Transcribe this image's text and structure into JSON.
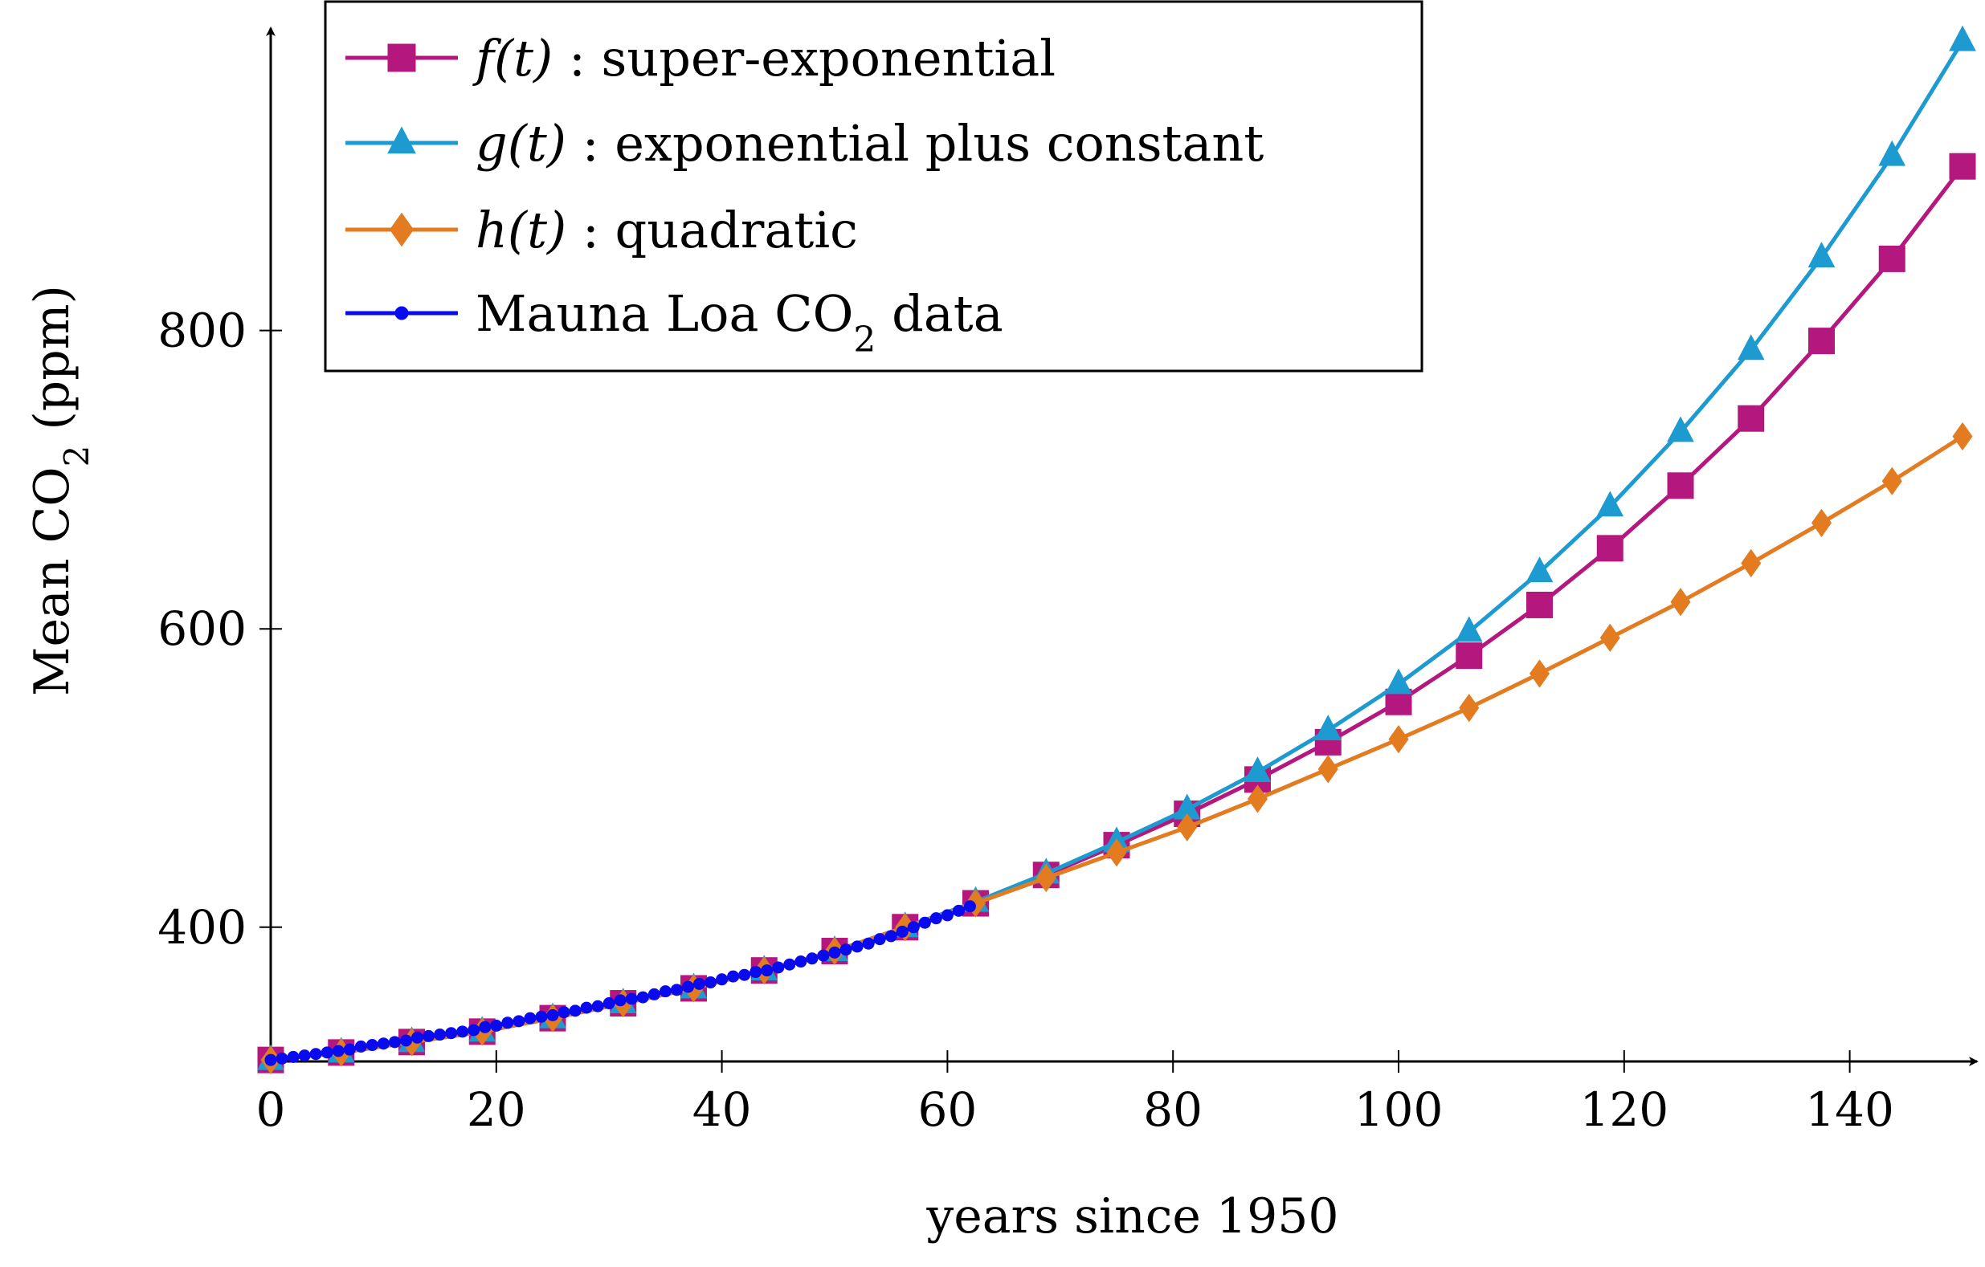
{
  "chart_data": {
    "type": "line",
    "xlabel": "years since 1950",
    "ylabel": "Mean CO",
    "ylabel_subscript": "2",
    "ylabel_units": "(ppm)",
    "xlim": [
      0,
      150
    ],
    "ylim": [
      310,
      1000
    ],
    "xticks": [
      0,
      20,
      40,
      60,
      80,
      100,
      120,
      140
    ],
    "yticks": [
      400,
      600,
      800
    ],
    "grid": false,
    "legend_position": "top-left",
    "series": [
      {
        "name": "f(t) : super-exponential",
        "legend_math": "f(t)",
        "legend_text": " : super-exponential",
        "color": "#b4187f",
        "marker": "square",
        "x": [
          0,
          6.25,
          12.5,
          18.75,
          25,
          31.25,
          37.5,
          43.75,
          50,
          56.25,
          62.5,
          68.75,
          75,
          81.25,
          87.5,
          93.75,
          100,
          106.25,
          112.5,
          118.75,
          125,
          131.25,
          137.5,
          143.75,
          150
        ],
        "y": [
          311,
          316,
          323,
          330,
          339,
          349,
          359,
          371,
          384,
          400,
          416,
          435,
          455,
          476,
          499,
          524,
          551,
          582,
          616,
          654,
          696,
          741,
          793,
          848,
          910
        ]
      },
      {
        "name": "g(t) : exponential plus constant",
        "legend_math": "g(t)",
        "legend_text": " : exponential plus constant",
        "color": "#1d9bd1",
        "marker": "triangle",
        "x": [
          0,
          6.25,
          12.5,
          18.75,
          25,
          31.25,
          37.5,
          43.75,
          50,
          56.25,
          62.5,
          68.75,
          75,
          81.25,
          87.5,
          93.75,
          100,
          106.25,
          112.5,
          118.75,
          125,
          131.25,
          137.5,
          143.75,
          150
        ],
        "y": [
          311,
          316,
          323,
          330,
          339,
          349,
          359,
          371,
          384,
          400,
          417,
          436,
          457,
          479,
          504,
          532,
          563,
          598,
          638,
          682,
          732,
          787,
          849,
          917,
          994
        ]
      },
      {
        "name": "h(t) : quadratic",
        "legend_math": "h(t)",
        "legend_text": " : quadratic",
        "color": "#e37b20",
        "marker": "diamond",
        "x": [
          0,
          6.25,
          12.5,
          18.75,
          25,
          31.25,
          37.5,
          43.75,
          50,
          56.25,
          62.5,
          68.75,
          75,
          81.25,
          87.5,
          93.75,
          100,
          106.25,
          112.5,
          118.75,
          125,
          131.25,
          137.5,
          143.75,
          150
        ],
        "y": [
          311,
          316,
          323,
          330,
          339,
          349,
          359,
          371,
          384,
          400,
          416,
          433,
          450,
          467,
          486,
          506,
          526,
          547,
          570,
          594,
          618,
          644,
          671,
          699,
          729
        ]
      },
      {
        "name": "Mauna Loa CO2 data",
        "legend_math": "",
        "legend_text": "Mauna Loa CO",
        "legend_subscript": "2",
        "legend_suffix": " data",
        "color": "#0a0aef",
        "marker": "circle",
        "x": [
          0,
          1,
          2,
          3,
          4,
          5,
          6,
          7,
          8,
          9,
          10,
          11,
          12,
          13,
          14,
          15,
          16,
          17,
          18,
          19,
          20,
          21,
          22,
          23,
          24,
          25,
          26,
          27,
          28,
          29,
          30,
          31,
          32,
          33,
          34,
          35,
          36,
          37,
          38,
          39,
          40,
          41,
          42,
          43,
          44,
          45,
          46,
          47,
          48,
          49,
          50,
          51,
          52,
          53,
          54,
          55,
          56,
          57,
          58,
          59,
          60,
          61,
          62
        ],
        "y": [
          311,
          312,
          313,
          314,
          315,
          316,
          317,
          318,
          320,
          321,
          322,
          323,
          324,
          326,
          327,
          328,
          329,
          330,
          331,
          333,
          334,
          336,
          337,
          339,
          340,
          341,
          343,
          344,
          346,
          347,
          349,
          351,
          352,
          353,
          355,
          357,
          358,
          360,
          362,
          363,
          365,
          367,
          368,
          370,
          371,
          373,
          375,
          377,
          379,
          381,
          383,
          385,
          387,
          389,
          392,
          394,
          397,
          400,
          403,
          406,
          408,
          411,
          414
        ]
      }
    ]
  }
}
